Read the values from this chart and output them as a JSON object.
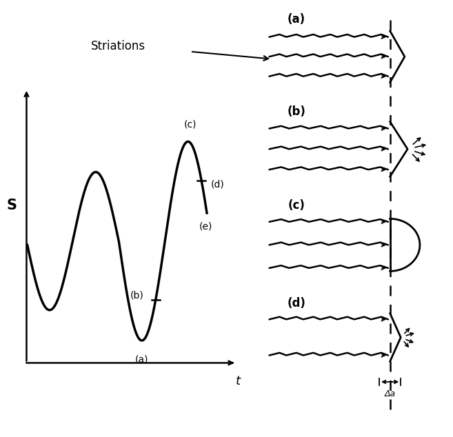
{
  "bg_color": "#ffffff",
  "striations_text": "Striations",
  "delta_a_text": "Δa",
  "xlabel": "t",
  "ylabel": "S",
  "right_labels": [
    "(a)",
    "(b)",
    "(c)",
    "(d)"
  ],
  "sine_labels": [
    "(a)",
    "(b)",
    "(c)",
    "(d)",
    "(e)"
  ],
  "sawtooth_amp": 0.12,
  "sawtooth_period": 0.55
}
